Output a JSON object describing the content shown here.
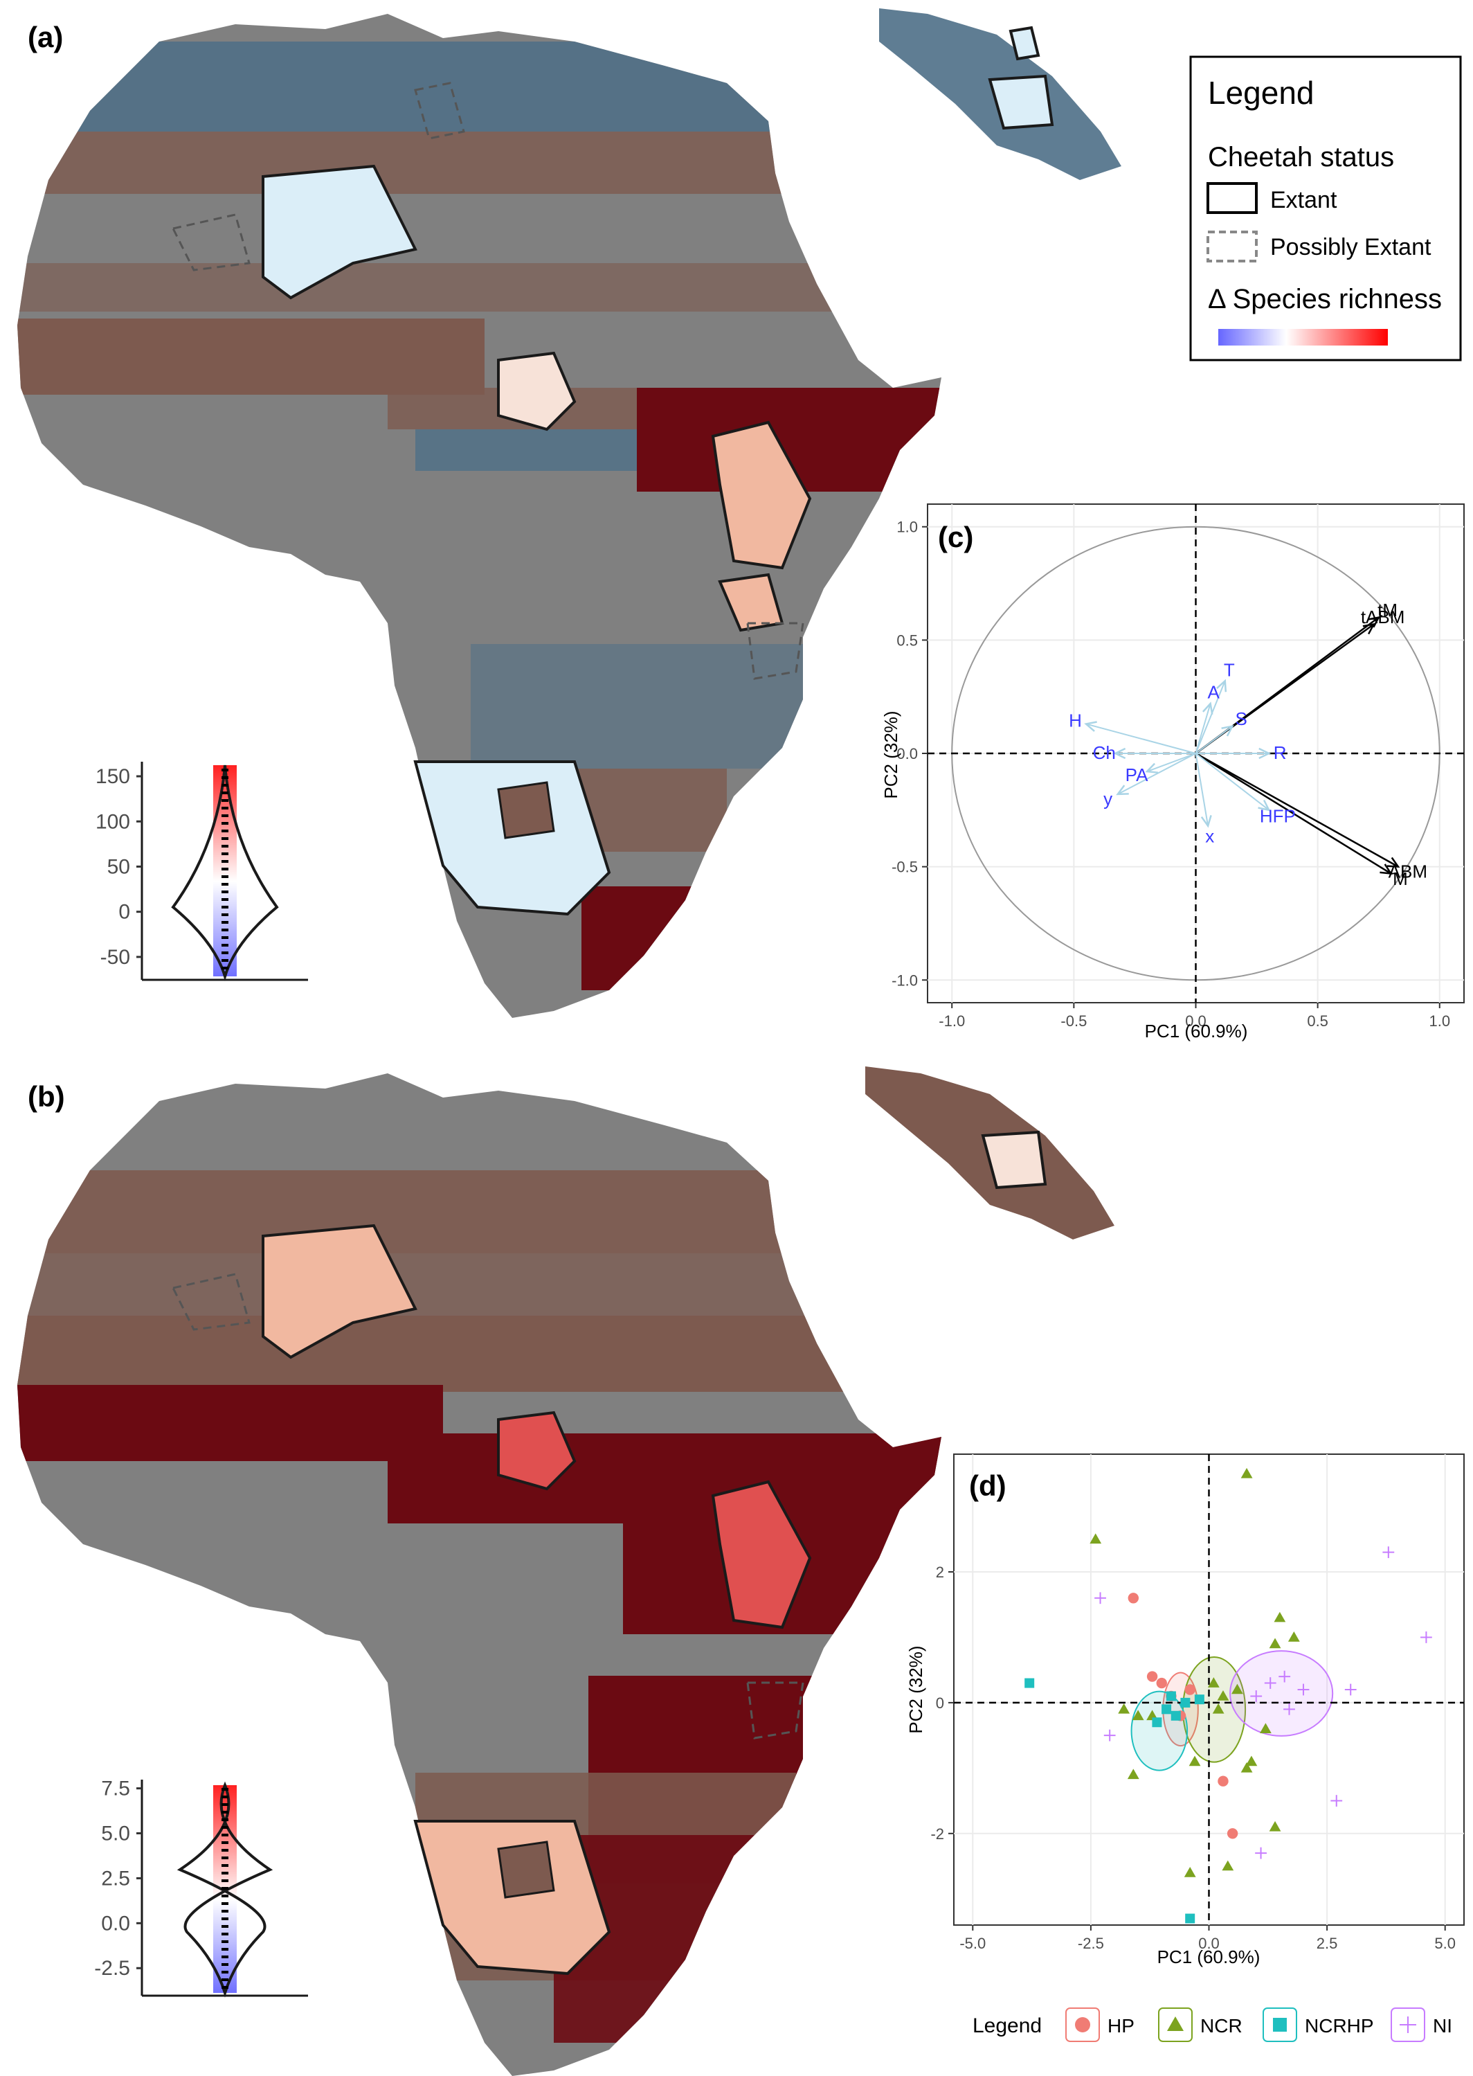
{
  "panels": {
    "a": "(a)",
    "b": "(b)",
    "c": "(c)",
    "d": "(d)"
  },
  "legend": {
    "title": "Legend",
    "status_title": "Cheetah status",
    "extant": "Extant",
    "possibly_extant": "Possibly Extant",
    "richness_title": "Δ Species richness",
    "gradient_low": "#6666ff",
    "gradient_mid": "#ffffff",
    "gradient_high": "#ff0000"
  },
  "map_colors": {
    "gray": "#808080",
    "brown": "#7d5a4f",
    "blue": "#4e6f87",
    "darkred": "#6b0a12",
    "lightblue": "#dbeef8",
    "salmon": "#f1b8a0",
    "red": "#e05050",
    "pale": "#f7e2d8"
  },
  "violin_a": {
    "ticks": [
      "150",
      "100",
      "50",
      "0",
      "-50"
    ],
    "tick_values": [
      150,
      100,
      50,
      0,
      -50
    ],
    "range": [
      -70,
      160
    ]
  },
  "violin_b": {
    "ticks": [
      "7.5",
      "5.0",
      "2.5",
      "0.0",
      "-2.5"
    ],
    "tick_values": [
      7.5,
      5.0,
      2.5,
      0.0,
      -2.5
    ],
    "range": [
      -3.8,
      7.6
    ]
  },
  "chart_data": [
    {
      "type": "scatter",
      "panel": "c",
      "xlabel": "PC1  (60.9%)",
      "ylabel": "PC2  (32%)",
      "xlim": [
        -1.1,
        1.1
      ],
      "ylim": [
        -1.1,
        1.1
      ],
      "x_ticks": [
        "-1.0",
        "-0.5",
        "0.0",
        "0.5",
        "1.0"
      ],
      "x_tick_values": [
        -1.0,
        -0.5,
        0.0,
        0.5,
        1.0
      ],
      "y_ticks": [
        "1.0",
        "0.5",
        "0.0",
        "-0.5",
        "-1.0"
      ],
      "y_tick_values": [
        1.0,
        0.5,
        0.0,
        -0.5,
        -1.0
      ],
      "grid": true,
      "vectors": [
        {
          "name": "tM",
          "x": 0.75,
          "y": 0.6,
          "color": "#000000"
        },
        {
          "name": "tABM",
          "x": 0.73,
          "y": 0.57,
          "color": "#000000"
        },
        {
          "name": "ABM",
          "x": 0.83,
          "y": -0.5,
          "color": "#000000"
        },
        {
          "name": "M",
          "x": 0.8,
          "y": -0.53,
          "color": "#000000"
        },
        {
          "name": "T",
          "x": 0.12,
          "y": 0.32,
          "color": "#3a3aff"
        },
        {
          "name": "A",
          "x": 0.06,
          "y": 0.22,
          "color": "#3a3aff"
        },
        {
          "name": "S",
          "x": 0.15,
          "y": 0.12,
          "color": "#3a3aff"
        },
        {
          "name": "R",
          "x": 0.3,
          "y": 0.0,
          "color": "#3a3aff"
        },
        {
          "name": "HFP",
          "x": 0.3,
          "y": -0.25,
          "color": "#3a3aff"
        },
        {
          "name": "x",
          "x": 0.05,
          "y": -0.32,
          "color": "#3a3aff"
        },
        {
          "name": "y",
          "x": -0.32,
          "y": -0.18,
          "color": "#3a3aff"
        },
        {
          "name": "PA",
          "x": -0.2,
          "y": -0.08,
          "color": "#3a3aff"
        },
        {
          "name": "H",
          "x": -0.45,
          "y": 0.13,
          "color": "#3a3aff"
        },
        {
          "name": "Ch",
          "x": -0.33,
          "y": 0.0,
          "color": "#3a3aff"
        }
      ]
    },
    {
      "type": "scatter",
      "panel": "d",
      "xlabel": "PC1  (60.9%)",
      "ylabel": "PC2  (32%)",
      "xlim": [
        -5.4,
        5.4
      ],
      "ylim": [
        -3.4,
        3.8
      ],
      "x_ticks": [
        "-5.0",
        "-2.5",
        "0.0",
        "2.5",
        "5.0"
      ],
      "x_tick_values": [
        -5.0,
        -2.5,
        0.0,
        2.5,
        5.0
      ],
      "y_ticks": [
        "2",
        "0",
        "-2"
      ],
      "y_tick_values": [
        2,
        0,
        -2
      ],
      "grid": true,
      "legend_title": "Legend",
      "series": [
        {
          "name": "HP",
          "color": "#f07c74",
          "marker": "circle",
          "points": [
            [
              -1.6,
              1.6
            ],
            [
              -1.0,
              0.3
            ],
            [
              -0.8,
              0.1
            ],
            [
              -0.6,
              -0.2
            ],
            [
              -1.2,
              0.4
            ],
            [
              0.5,
              -2.0
            ],
            [
              0.3,
              -1.2
            ],
            [
              -0.4,
              0.2
            ]
          ]
        },
        {
          "name": "NCR",
          "color": "#7ca31f",
          "marker": "triangle",
          "points": [
            [
              0.8,
              3.5
            ],
            [
              -2.4,
              2.5
            ],
            [
              1.5,
              1.3
            ],
            [
              1.8,
              1.0
            ],
            [
              1.4,
              0.9
            ],
            [
              0.1,
              0.3
            ],
            [
              0.3,
              0.1
            ],
            [
              0.6,
              0.2
            ],
            [
              -1.5,
              -0.2
            ],
            [
              -1.8,
              -0.1
            ],
            [
              -1.6,
              -1.1
            ],
            [
              0.9,
              -0.9
            ],
            [
              0.8,
              -1.0
            ],
            [
              1.4,
              -1.9
            ],
            [
              0.4,
              -2.5
            ],
            [
              -0.4,
              -2.6
            ],
            [
              1.2,
              -0.4
            ],
            [
              -0.3,
              -0.9
            ],
            [
              0.2,
              -0.1
            ],
            [
              -1.2,
              -0.2
            ]
          ]
        },
        {
          "name": "NCRHP",
          "color": "#1fbfbf",
          "marker": "square",
          "points": [
            [
              -3.8,
              0.3
            ],
            [
              -0.9,
              -0.1
            ],
            [
              -0.7,
              -0.2
            ],
            [
              -0.5,
              0.0
            ],
            [
              -1.1,
              -0.3
            ],
            [
              -0.4,
              -3.3
            ],
            [
              -0.8,
              0.1
            ],
            [
              -0.2,
              0.05
            ]
          ]
        },
        {
          "name": "NI",
          "color": "#c77cff",
          "marker": "plus",
          "points": [
            [
              3.8,
              2.3
            ],
            [
              4.6,
              1.0
            ],
            [
              -2.3,
              1.6
            ],
            [
              1.6,
              0.4
            ],
            [
              2.0,
              0.2
            ],
            [
              3.0,
              0.2
            ],
            [
              1.7,
              -0.1
            ],
            [
              -2.1,
              -0.5
            ],
            [
              1.3,
              0.3
            ],
            [
              1.0,
              0.1
            ],
            [
              2.7,
              -1.5
            ],
            [
              1.1,
              -2.3
            ]
          ]
        }
      ]
    }
  ]
}
